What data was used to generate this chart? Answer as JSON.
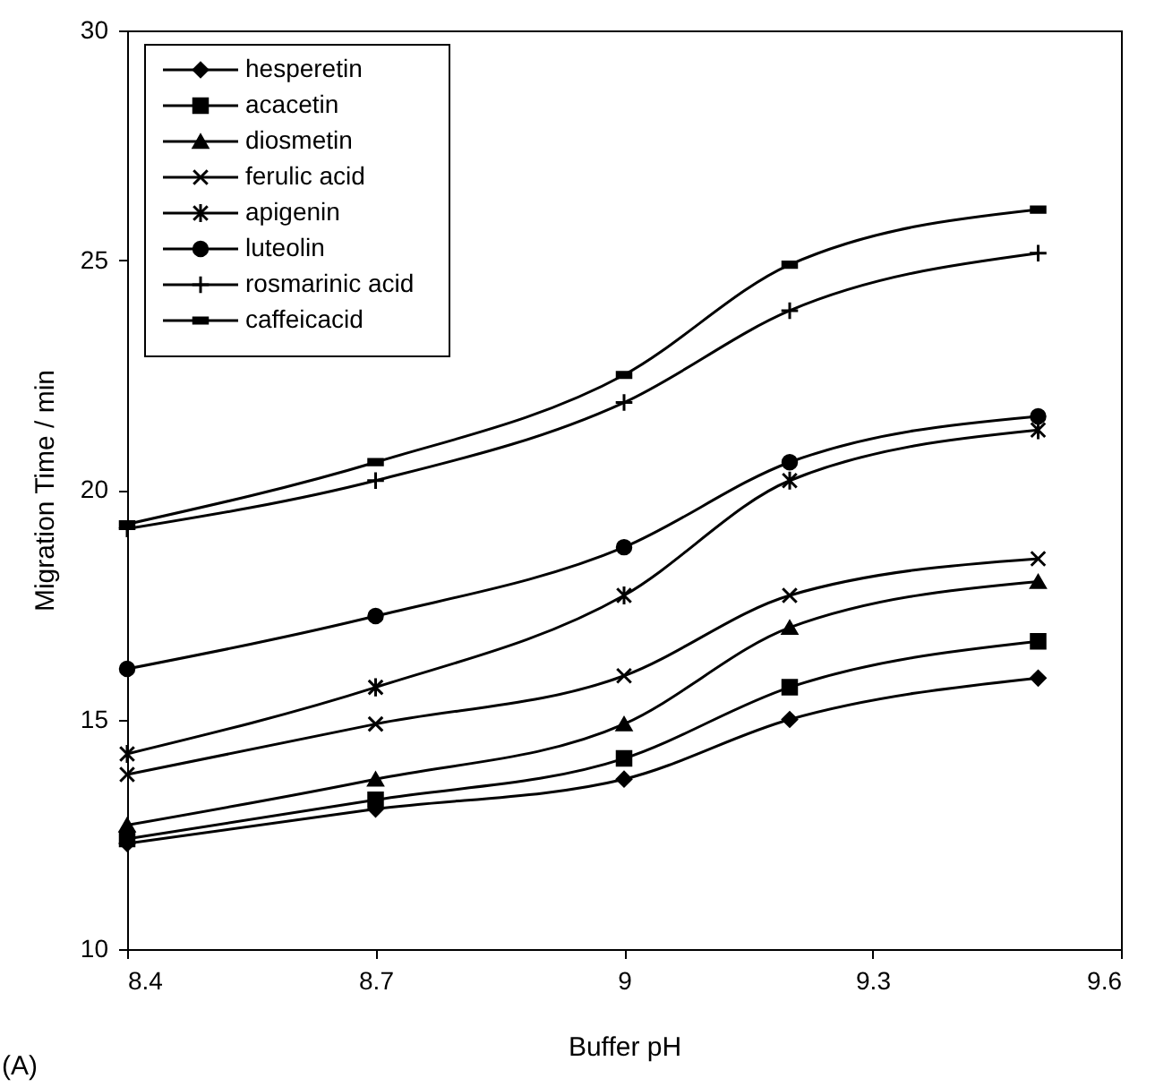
{
  "chart_data": {
    "type": "line",
    "xlabel": "Buffer pH",
    "ylabel": "Migration Time / min",
    "annotations": [
      "(A)"
    ],
    "x": [
      8.4,
      8.7,
      9.0,
      9.2,
      9.5
    ],
    "series": [
      {
        "name": "hesperetin",
        "color": "#000000",
        "marker": "diamond",
        "values": [
          12.3,
          13.05,
          13.7,
          15.0,
          15.9
        ]
      },
      {
        "name": "acacetin",
        "color": "#000000",
        "marker": "square",
        "values": [
          12.4,
          13.25,
          14.15,
          15.7,
          16.7
        ]
      },
      {
        "name": "diosmetin",
        "color": "#000000",
        "marker": "triangle",
        "values": [
          12.7,
          13.7,
          14.9,
          17.0,
          18.0
        ]
      },
      {
        "name": "ferulic acid",
        "color": "#000000",
        "marker": "cross",
        "values": [
          13.8,
          14.9,
          15.95,
          17.7,
          18.5
        ]
      },
      {
        "name": "apigenin",
        "color": "#000000",
        "marker": "cross",
        "values": [
          14.25,
          15.7,
          17.7,
          20.2,
          21.3
        ]
      },
      {
        "name": "luteolin",
        "color": "#000000",
        "marker": "circle",
        "values": [
          16.1,
          17.25,
          18.75,
          20.6,
          21.6
        ]
      },
      {
        "name": "rosmarinic acid",
        "color": "#000000",
        "marker": "cross",
        "values": [
          19.15,
          20.2,
          21.9,
          23.9,
          25.15
        ]
      },
      {
        "name": "caffeicacid",
        "color": "#000000",
        "marker": "square",
        "values": [
          19.25,
          20.6,
          22.5,
          24.9,
          26.1
        ]
      }
    ],
    "xlim": [
      8.4,
      9.6
    ],
    "xticks": [
      8.4,
      8.7,
      9,
      9.3,
      9.6
    ],
    "ylim": [
      10,
      30
    ],
    "yticks": [
      10,
      15,
      20,
      25,
      30
    ],
    "grid": false,
    "legend": "top left",
    "line_style": "solid"
  }
}
